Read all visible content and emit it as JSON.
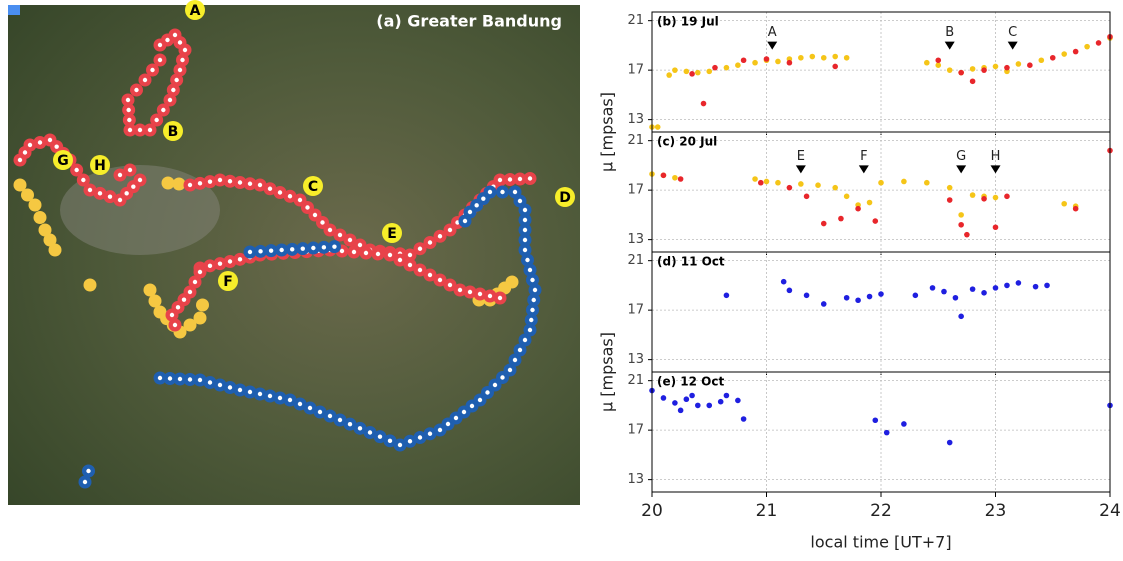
{
  "map": {
    "title": "(a) Greater Bandung",
    "labels": [
      "A",
      "B",
      "C",
      "D",
      "E",
      "F",
      "G",
      "H"
    ]
  },
  "chart_data": [
    {
      "type": "scatter",
      "title": "(b) 19 Jul",
      "ylabel": "μ [mpsas]",
      "xlim": [
        20,
        24
      ],
      "xticks": [
        20,
        21,
        22,
        23,
        24
      ],
      "ylim": [
        12,
        21.7
      ],
      "yticks": [
        13,
        17,
        21
      ],
      "grid": true,
      "series": [
        {
          "color": "#f5c518",
          "x": [
            20.0,
            20.05,
            20.15,
            20.2,
            20.3,
            20.4,
            20.5,
            20.65,
            20.75,
            20.9,
            21.0,
            21.1,
            21.2,
            21.3,
            21.4,
            21.5,
            21.6,
            21.7,
            22.4,
            22.5,
            22.6,
            22.7,
            22.8,
            22.9,
            23.0,
            23.1,
            23.2,
            23.4,
            23.6,
            23.8,
            24.0
          ],
          "values": [
            12.4,
            12.4,
            16.6,
            17.0,
            16.9,
            16.8,
            16.9,
            17.2,
            17.4,
            17.6,
            17.8,
            17.7,
            17.9,
            18.0,
            18.1,
            18.0,
            18.1,
            18.0,
            17.6,
            17.4,
            17.0,
            16.8,
            17.1,
            17.2,
            17.3,
            16.9,
            17.5,
            17.8,
            18.3,
            18.9,
            19.6
          ]
        },
        {
          "color": "#e8262b",
          "x": [
            20.35,
            20.45,
            20.55,
            20.8,
            21.0,
            21.2,
            21.6,
            22.5,
            22.7,
            22.8,
            22.9,
            23.1,
            23.3,
            23.5,
            23.7,
            23.9,
            24.0
          ],
          "values": [
            16.7,
            14.3,
            17.2,
            17.8,
            17.9,
            17.6,
            17.3,
            17.8,
            16.8,
            16.1,
            17.0,
            17.2,
            17.4,
            18.0,
            18.5,
            19.2,
            19.7
          ]
        }
      ],
      "annotations": [
        {
          "text": "A",
          "x": 21.05,
          "y": 18.9
        },
        {
          "text": "B",
          "x": 22.6,
          "y": 18.9
        },
        {
          "text": "C",
          "x": 23.15,
          "y": 18.9
        }
      ]
    },
    {
      "type": "scatter",
      "title": "(c) 20 Jul",
      "xlim": [
        20,
        24
      ],
      "xticks": [
        20,
        21,
        22,
        23,
        24
      ],
      "ylim": [
        12,
        21.7
      ],
      "yticks": [
        13,
        17,
        21
      ],
      "grid": true,
      "series": [
        {
          "color": "#f5c518",
          "x": [
            20.0,
            20.1,
            20.2,
            20.9,
            21.0,
            21.1,
            21.3,
            21.45,
            21.6,
            21.7,
            21.8,
            21.9,
            22.0,
            22.2,
            22.4,
            22.6,
            22.7,
            22.8,
            22.9,
            23.0,
            23.6,
            23.7
          ],
          "values": [
            18.3,
            18.2,
            18.0,
            17.9,
            17.7,
            17.6,
            17.5,
            17.4,
            17.2,
            16.5,
            15.8,
            16.0,
            17.6,
            17.7,
            17.6,
            17.2,
            15.0,
            16.6,
            16.5,
            16.4,
            15.9,
            15.7
          ]
        },
        {
          "color": "#e8262b",
          "x": [
            20.1,
            20.25,
            20.95,
            21.2,
            21.35,
            21.5,
            21.65,
            21.8,
            21.95,
            22.6,
            22.7,
            22.75,
            22.9,
            23.0,
            23.1,
            23.7,
            24.0
          ],
          "values": [
            18.2,
            17.9,
            17.6,
            17.2,
            16.5,
            14.3,
            14.7,
            15.5,
            14.5,
            16.2,
            14.2,
            13.4,
            16.3,
            14.0,
            16.5,
            15.5,
            20.2
          ]
        }
      ],
      "annotations": [
        {
          "text": "E",
          "x": 21.3,
          "y": 18.6
        },
        {
          "text": "F",
          "x": 21.85,
          "y": 18.6
        },
        {
          "text": "G",
          "x": 22.7,
          "y": 18.6
        },
        {
          "text": "H",
          "x": 23.0,
          "y": 18.6
        }
      ]
    },
    {
      "type": "scatter",
      "title": "(d) 11 Oct",
      "ylabel": "μ [mpsas]",
      "xlim": [
        20,
        24
      ],
      "xticks": [
        20,
        21,
        22,
        23,
        24
      ],
      "ylim": [
        12,
        21.7
      ],
      "yticks": [
        13,
        17,
        21
      ],
      "grid": true,
      "series": [
        {
          "color": "#1f1fe0",
          "x": [
            20.65,
            21.15,
            21.2,
            21.35,
            21.5,
            21.7,
            21.8,
            21.9,
            22.0,
            22.3,
            22.45,
            22.55,
            22.65,
            22.7,
            22.8,
            22.9,
            23.0,
            23.1,
            23.2,
            23.35,
            23.45
          ],
          "values": [
            18.2,
            19.3,
            18.6,
            18.2,
            17.5,
            18.0,
            17.8,
            18.1,
            18.3,
            18.2,
            18.8,
            18.5,
            18.0,
            16.5,
            18.7,
            18.4,
            18.8,
            19.0,
            19.2,
            18.9,
            19.0
          ]
        }
      ]
    },
    {
      "type": "scatter",
      "title": "(e) 12 Oct",
      "xlabel": "local time [UT+7]",
      "xlim": [
        20,
        24
      ],
      "xticks": [
        20,
        21,
        22,
        23,
        24
      ],
      "ylim": [
        12,
        21.7
      ],
      "yticks": [
        13,
        17,
        21
      ],
      "grid": true,
      "series": [
        {
          "color": "#1f1fe0",
          "x": [
            20.0,
            20.1,
            20.2,
            20.25,
            20.3,
            20.35,
            20.4,
            20.5,
            20.6,
            20.65,
            20.75,
            20.8,
            21.95,
            22.05,
            22.2,
            22.6,
            24.0
          ],
          "values": [
            20.2,
            19.6,
            19.2,
            18.6,
            19.5,
            19.8,
            19.0,
            19.0,
            19.3,
            19.8,
            19.4,
            17.9,
            17.8,
            16.8,
            17.5,
            16.0,
            19.0
          ]
        }
      ]
    }
  ]
}
